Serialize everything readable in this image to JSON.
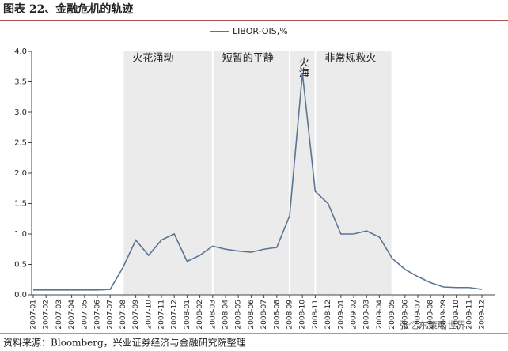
{
  "chart_data": {
    "type": "line",
    "title": "图表 22、金融危机的轨迹",
    "source": "资料来源：Bloomberg，兴业证券经济与金融研究院整理",
    "watermark": "张忆东策略世界",
    "x": [
      "2007-01",
      "2007-02",
      "2007-03",
      "2007-04",
      "2007-05",
      "2007-06",
      "2007-07",
      "2007-08",
      "2007-09",
      "2007-10",
      "2007-11",
      "2007-12",
      "2008-01",
      "2008-02",
      "2008-03",
      "2008-04",
      "2008-05",
      "2008-06",
      "2008-07",
      "2008-08",
      "2008-09",
      "2008-10",
      "2008-11",
      "2008-12",
      "2009-01",
      "2009-02",
      "2009-03",
      "2009-04",
      "2009-05",
      "2009-06",
      "2009-07",
      "2009-08",
      "2009-09",
      "2009-10",
      "2009-11",
      "2009-12"
    ],
    "series": [
      {
        "name": "LIBOR-OIS,%",
        "color": "#5b7593",
        "values": [
          0.08,
          0.08,
          0.08,
          0.08,
          0.08,
          0.08,
          0.09,
          0.45,
          0.9,
          0.65,
          0.9,
          1.0,
          0.55,
          0.65,
          0.8,
          0.75,
          0.72,
          0.7,
          0.75,
          0.78,
          1.3,
          3.64,
          1.7,
          1.5,
          1.0,
          1.0,
          1.05,
          0.95,
          0.6,
          0.42,
          0.3,
          0.2,
          0.13,
          0.12,
          0.12,
          0.09
        ]
      }
    ],
    "regions": [
      {
        "label": "火花涌动",
        "start": "2007-08",
        "end": "2008-03"
      },
      {
        "label": "短暂的平静",
        "start": "2008-03",
        "end": "2008-09"
      },
      {
        "label": "火海",
        "start": "2008-09",
        "end": "2008-11"
      },
      {
        "label": "非常规救火",
        "start": "2008-11",
        "end": "2009-05"
      }
    ],
    "ylim": [
      0,
      4
    ],
    "yticks": [
      {
        "value": 0,
        "label": "0.0"
      },
      0.5,
      {
        "value": 1,
        "label": "1.0"
      },
      1.5,
      {
        "value": 2,
        "label": "2.0"
      },
      2.5,
      {
        "value": 3,
        "label": "3.0"
      },
      3.5,
      {
        "value": 4,
        "label": "4.0"
      }
    ],
    "legend": "top"
  }
}
